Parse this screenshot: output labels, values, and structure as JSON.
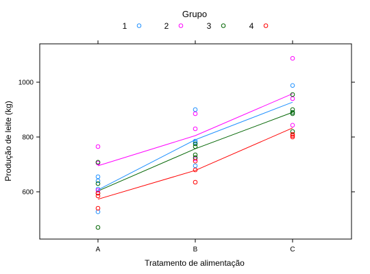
{
  "chart_data": {
    "type": "scatter",
    "legend_title": "Grupo",
    "legend_position": "top",
    "xlabel": "Tratamento de alimentação",
    "ylabel": "Produção de leite (kg)",
    "categories": [
      "A",
      "B",
      "C"
    ],
    "yticks": [
      600,
      800,
      1000
    ],
    "ylim": [
      425,
      1130
    ],
    "grid": false,
    "series": [
      {
        "name": "1",
        "color": "#1e90ff",
        "points": [
          [
            1,
            527
          ],
          [
            1,
            610
          ],
          [
            1,
            640
          ],
          [
            1,
            655
          ],
          [
            2,
            695
          ],
          [
            2,
            780
          ],
          [
            2,
            785
          ],
          [
            2,
            900
          ],
          [
            3,
            890
          ],
          [
            3,
            988
          ]
        ],
        "fit": [
          607,
          790,
          927
        ]
      },
      {
        "name": "2",
        "color": "#ff00ff",
        "points": [
          [
            1,
            605
          ],
          [
            1,
            705
          ],
          [
            1,
            765
          ],
          [
            2,
            720
          ],
          [
            2,
            830
          ],
          [
            2,
            885
          ],
          [
            3,
            843
          ],
          [
            3,
            940
          ],
          [
            3,
            1087
          ]
        ],
        "fit": [
          695,
          805,
          958
        ]
      },
      {
        "name": "3",
        "color": "#006400",
        "points": [
          [
            1,
            470
          ],
          [
            1,
            595
          ],
          [
            1,
            630
          ],
          [
            1,
            708
          ],
          [
            2,
            725
          ],
          [
            2,
            735
          ],
          [
            2,
            765
          ],
          [
            2,
            775
          ],
          [
            3,
            820
          ],
          [
            3,
            885
          ],
          [
            3,
            890
          ],
          [
            3,
            900
          ],
          [
            3,
            955
          ]
        ],
        "fit": [
          603,
          757,
          890
        ]
      },
      {
        "name": "4",
        "color": "#ff0000",
        "points": [
          [
            1,
            540
          ],
          [
            1,
            585
          ],
          [
            1,
            595
          ],
          [
            2,
            635
          ],
          [
            2,
            680
          ],
          [
            2,
            712
          ],
          [
            3,
            800
          ],
          [
            3,
            805
          ],
          [
            3,
            810
          ]
        ],
        "fit": [
          573,
          678,
          833
        ]
      }
    ]
  }
}
